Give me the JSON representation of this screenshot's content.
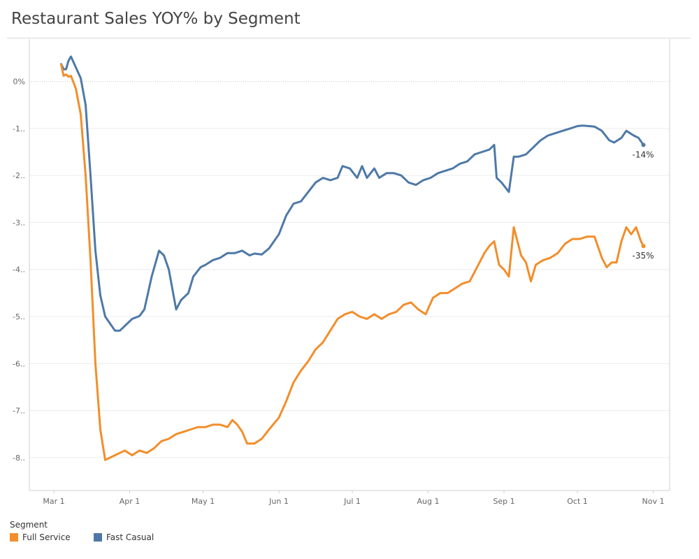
{
  "title": "Restaurant Sales YOY% by Segment",
  "legend": {
    "title": "Segment",
    "items": [
      {
        "label": "Full Service",
        "color": "#f28e2b"
      },
      {
        "label": "Fast Casual",
        "color": "#4e79a7"
      }
    ]
  },
  "chart_data": {
    "type": "line",
    "title": "Restaurant Sales YOY% by Segment",
    "xlabel": "",
    "ylabel": "",
    "x_tick_labels": [
      "Mar 1",
      "Apr 1",
      "May 1",
      "Jun 1",
      "Jul 1",
      "Aug 1",
      "Sep 1",
      "Oct 1",
      "Nov 1"
    ],
    "y_tick_labels": [
      "0%",
      "-1..",
      "-2..",
      "-3..",
      "-4..",
      "-5..",
      "-6..",
      "-7..",
      "-8.."
    ],
    "y_tick_values": [
      0,
      -10,
      -20,
      -30,
      -40,
      -50,
      -60,
      -70,
      -80
    ],
    "ylim": [
      -87,
      9
    ],
    "xlim": [
      "2020-02-20",
      "2020-11-05"
    ],
    "grid": "horizontal",
    "legend_position": "bottom-left",
    "series": [
      {
        "name": "Fast Casual",
        "color": "#4e79a7",
        "end_label": "-14%",
        "points": [
          [
            "2020-03-04",
            3.7
          ],
          [
            "2020-03-05",
            2.6
          ],
          [
            "2020-03-06",
            2.6
          ],
          [
            "2020-03-07",
            4.4
          ],
          [
            "2020-03-08",
            5.3
          ],
          [
            "2020-03-10",
            3.0
          ],
          [
            "2020-03-12",
            0.7
          ],
          [
            "2020-03-14",
            -5.0
          ],
          [
            "2020-03-16",
            -20.0
          ],
          [
            "2020-03-18",
            -36.0
          ],
          [
            "2020-03-20",
            -45.5
          ],
          [
            "2020-03-22",
            -50.0
          ],
          [
            "2020-03-24",
            -51.5
          ],
          [
            "2020-03-26",
            -53.0
          ],
          [
            "2020-03-28",
            -53.0
          ],
          [
            "2020-03-30",
            -52.0
          ],
          [
            "2020-04-02",
            -50.5
          ],
          [
            "2020-04-05",
            -49.9
          ],
          [
            "2020-04-07",
            -48.5
          ],
          [
            "2020-04-10",
            -41.5
          ],
          [
            "2020-04-13",
            -36.0
          ],
          [
            "2020-04-15",
            -37.0
          ],
          [
            "2020-04-17",
            -40.0
          ],
          [
            "2020-04-20",
            -48.5
          ],
          [
            "2020-04-22",
            -46.5
          ],
          [
            "2020-04-25",
            -45.0
          ],
          [
            "2020-04-27",
            -41.5
          ],
          [
            "2020-04-30",
            -39.5
          ],
          [
            "2020-05-02",
            -39.0
          ],
          [
            "2020-05-05",
            -38.0
          ],
          [
            "2020-05-08",
            -37.5
          ],
          [
            "2020-05-11",
            -36.5
          ],
          [
            "2020-05-14",
            -36.5
          ],
          [
            "2020-05-17",
            -36.0
          ],
          [
            "2020-05-20",
            -37.0
          ],
          [
            "2020-05-22",
            -36.6
          ],
          [
            "2020-05-25",
            -36.8
          ],
          [
            "2020-05-28",
            -35.5
          ],
          [
            "2020-06-01",
            -32.5
          ],
          [
            "2020-06-04",
            -28.5
          ],
          [
            "2020-06-07",
            -26.0
          ],
          [
            "2020-06-10",
            -25.5
          ],
          [
            "2020-06-13",
            -23.5
          ],
          [
            "2020-06-16",
            -21.5
          ],
          [
            "2020-06-19",
            -20.5
          ],
          [
            "2020-06-22",
            -21.0
          ],
          [
            "2020-06-25",
            -20.5
          ],
          [
            "2020-06-27",
            -18.0
          ],
          [
            "2020-06-30",
            -18.5
          ],
          [
            "2020-07-03",
            -20.5
          ],
          [
            "2020-07-05",
            -18.0
          ],
          [
            "2020-07-07",
            -20.5
          ],
          [
            "2020-07-10",
            -18.5
          ],
          [
            "2020-07-12",
            -20.5
          ],
          [
            "2020-07-15",
            -19.5
          ],
          [
            "2020-07-18",
            -19.5
          ],
          [
            "2020-07-21",
            -20.0
          ],
          [
            "2020-07-24",
            -21.5
          ],
          [
            "2020-07-27",
            -22.0
          ],
          [
            "2020-07-30",
            -21.0
          ],
          [
            "2020-08-02",
            -20.5
          ],
          [
            "2020-08-05",
            -19.5
          ],
          [
            "2020-08-08",
            -19.0
          ],
          [
            "2020-08-11",
            -18.5
          ],
          [
            "2020-08-14",
            -17.5
          ],
          [
            "2020-08-17",
            -17.0
          ],
          [
            "2020-08-20",
            -15.5
          ],
          [
            "2020-08-23",
            -15.0
          ],
          [
            "2020-08-26",
            -14.5
          ],
          [
            "2020-08-28",
            -13.5
          ],
          [
            "2020-08-29",
            -20.5
          ],
          [
            "2020-08-31",
            -21.5
          ],
          [
            "2020-09-03",
            -23.5
          ],
          [
            "2020-09-05",
            -16.0
          ],
          [
            "2020-09-07",
            -16.0
          ],
          [
            "2020-09-10",
            -15.5
          ],
          [
            "2020-09-13",
            -14.0
          ],
          [
            "2020-09-16",
            -12.5
          ],
          [
            "2020-09-19",
            -11.5
          ],
          [
            "2020-09-22",
            -11.0
          ],
          [
            "2020-09-25",
            -10.5
          ],
          [
            "2020-09-28",
            -10.0
          ],
          [
            "2020-10-01",
            -9.5
          ],
          [
            "2020-10-03",
            -9.4
          ],
          [
            "2020-10-06",
            -9.5
          ],
          [
            "2020-10-08",
            -9.6
          ],
          [
            "2020-10-11",
            -10.5
          ],
          [
            "2020-10-14",
            -12.5
          ],
          [
            "2020-10-16",
            -13.0
          ],
          [
            "2020-10-19",
            -12.0
          ],
          [
            "2020-10-21",
            -10.5
          ],
          [
            "2020-10-24",
            -11.5
          ],
          [
            "2020-10-26",
            -12.0
          ],
          [
            "2020-10-28",
            -13.5
          ]
        ]
      },
      {
        "name": "Full Service",
        "color": "#f28e2b",
        "end_label": "-35%",
        "points": [
          [
            "2020-03-04",
            3.6
          ],
          [
            "2020-03-05",
            1.2
          ],
          [
            "2020-03-06",
            1.5
          ],
          [
            "2020-03-07",
            1.0
          ],
          [
            "2020-03-08",
            1.2
          ],
          [
            "2020-03-10",
            -1.5
          ],
          [
            "2020-03-12",
            -7.0
          ],
          [
            "2020-03-14",
            -20.0
          ],
          [
            "2020-03-16",
            -38.0
          ],
          [
            "2020-03-18",
            -60.0
          ],
          [
            "2020-03-20",
            -74.0
          ],
          [
            "2020-03-22",
            -80.5
          ],
          [
            "2020-03-24",
            -80.0
          ],
          [
            "2020-03-26",
            -79.5
          ],
          [
            "2020-03-28",
            -79.0
          ],
          [
            "2020-03-30",
            -78.5
          ],
          [
            "2020-04-02",
            -79.5
          ],
          [
            "2020-04-05",
            -78.5
          ],
          [
            "2020-04-08",
            -79.0
          ],
          [
            "2020-04-11",
            -78.0
          ],
          [
            "2020-04-14",
            -76.5
          ],
          [
            "2020-04-17",
            -76.0
          ],
          [
            "2020-04-20",
            -75.0
          ],
          [
            "2020-04-23",
            -74.5
          ],
          [
            "2020-04-26",
            -74.0
          ],
          [
            "2020-04-29",
            -73.5
          ],
          [
            "2020-05-02",
            -73.5
          ],
          [
            "2020-05-05",
            -73.0
          ],
          [
            "2020-05-08",
            -73.0
          ],
          [
            "2020-05-11",
            -73.5
          ],
          [
            "2020-05-13",
            -72.0
          ],
          [
            "2020-05-15",
            -73.0
          ],
          [
            "2020-05-17",
            -74.5
          ],
          [
            "2020-05-19",
            -77.0
          ],
          [
            "2020-05-22",
            -77.0
          ],
          [
            "2020-05-25",
            -76.0
          ],
          [
            "2020-05-28",
            -74.0
          ],
          [
            "2020-06-01",
            -71.5
          ],
          [
            "2020-06-04",
            -68.0
          ],
          [
            "2020-06-07",
            -64.0
          ],
          [
            "2020-06-10",
            -61.5
          ],
          [
            "2020-06-13",
            -59.5
          ],
          [
            "2020-06-16",
            -57.0
          ],
          [
            "2020-06-19",
            -55.5
          ],
          [
            "2020-06-22",
            -53.0
          ],
          [
            "2020-06-25",
            -50.5
          ],
          [
            "2020-06-28",
            -49.5
          ],
          [
            "2020-07-01",
            -49.0
          ],
          [
            "2020-07-04",
            -50.0
          ],
          [
            "2020-07-07",
            -50.5
          ],
          [
            "2020-07-10",
            -49.5
          ],
          [
            "2020-07-13",
            -50.5
          ],
          [
            "2020-07-16",
            -49.5
          ],
          [
            "2020-07-19",
            -49.0
          ],
          [
            "2020-07-22",
            -47.5
          ],
          [
            "2020-07-25",
            -47.0
          ],
          [
            "2020-07-28",
            -48.5
          ],
          [
            "2020-07-31",
            -49.5
          ],
          [
            "2020-08-03",
            -46.0
          ],
          [
            "2020-08-06",
            -45.0
          ],
          [
            "2020-08-09",
            -45.0
          ],
          [
            "2020-08-12",
            -44.0
          ],
          [
            "2020-08-15",
            -43.0
          ],
          [
            "2020-08-18",
            -42.5
          ],
          [
            "2020-08-21",
            -39.5
          ],
          [
            "2020-08-24",
            -36.5
          ],
          [
            "2020-08-26",
            -35.0
          ],
          [
            "2020-08-28",
            -34.0
          ],
          [
            "2020-08-30",
            -39.0
          ],
          [
            "2020-09-01",
            -40.0
          ],
          [
            "2020-09-03",
            -41.5
          ],
          [
            "2020-09-05",
            -31.0
          ],
          [
            "2020-09-08",
            -37.0
          ],
          [
            "2020-09-10",
            -38.5
          ],
          [
            "2020-09-12",
            -42.5
          ],
          [
            "2020-09-14",
            -39.0
          ],
          [
            "2020-09-17",
            -38.0
          ],
          [
            "2020-09-20",
            -37.5
          ],
          [
            "2020-09-23",
            -36.5
          ],
          [
            "2020-09-26",
            -34.5
          ],
          [
            "2020-09-29",
            -33.5
          ],
          [
            "2020-10-02",
            -33.5
          ],
          [
            "2020-10-05",
            -33.0
          ],
          [
            "2020-10-08",
            -33.0
          ],
          [
            "2020-10-11",
            -37.5
          ],
          [
            "2020-10-13",
            -39.5
          ],
          [
            "2020-10-15",
            -38.5
          ],
          [
            "2020-10-17",
            -38.5
          ],
          [
            "2020-10-19",
            -34.0
          ],
          [
            "2020-10-21",
            -31.0
          ],
          [
            "2020-10-23",
            -32.5
          ],
          [
            "2020-10-25",
            -31.0
          ],
          [
            "2020-10-27",
            -34.0
          ],
          [
            "2020-10-28",
            -35.0
          ]
        ]
      }
    ]
  }
}
